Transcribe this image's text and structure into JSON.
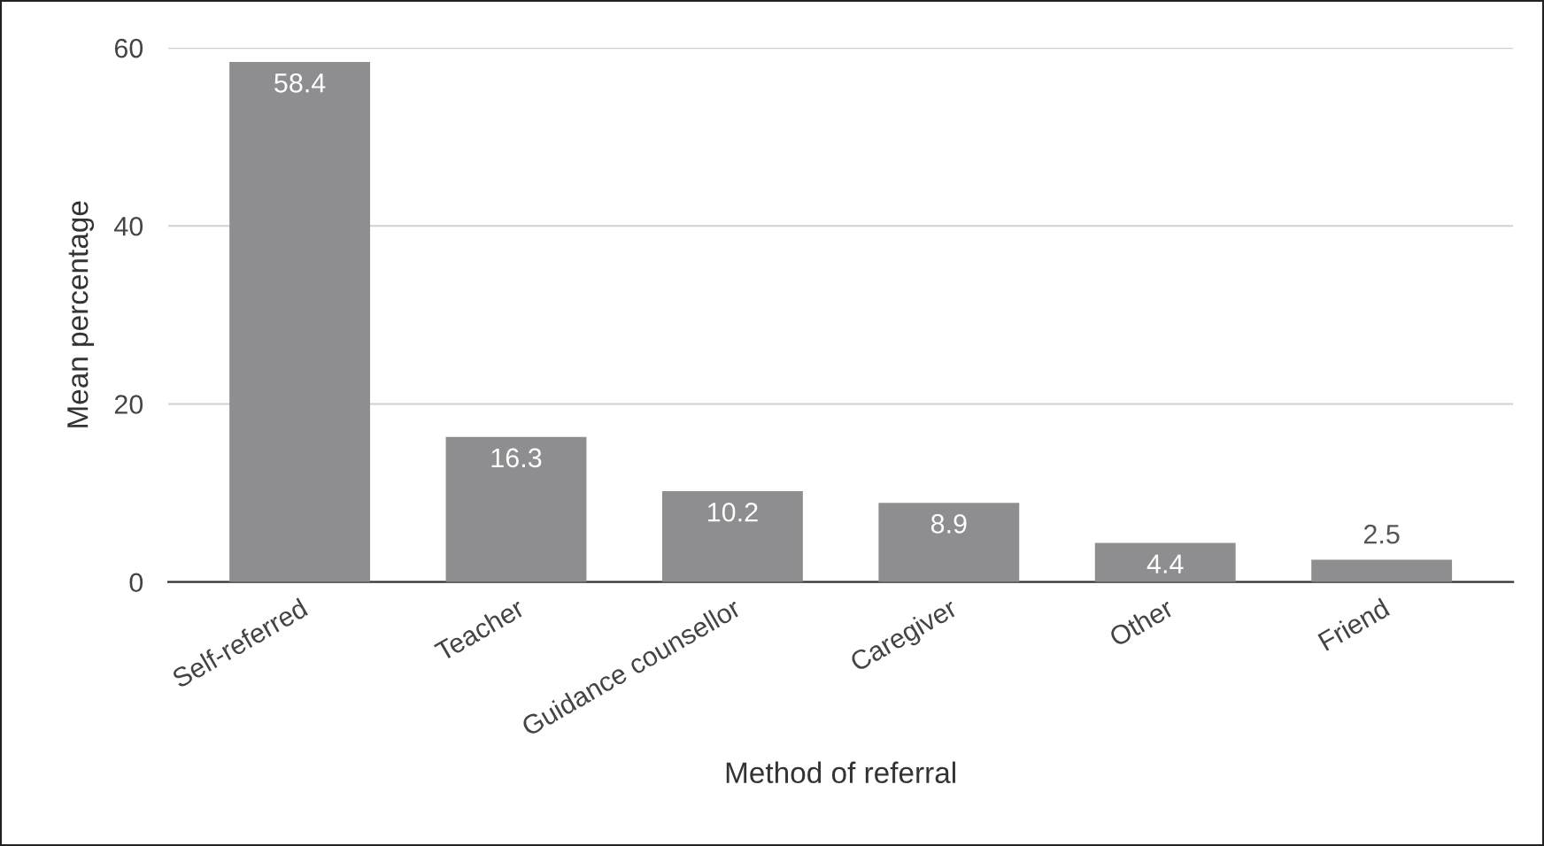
{
  "chart_data": {
    "type": "bar",
    "xlabel": "Method of referral",
    "ylabel": "Mean percentage",
    "categories": [
      "Self-referred",
      "Teacher",
      "Guidance counsellor",
      "Caregiver",
      "Other",
      "Friend"
    ],
    "values": [
      58.4,
      16.3,
      10.2,
      8.9,
      4.4,
      2.5
    ],
    "color": "#8e8e90",
    "ylim": [
      0,
      60
    ],
    "yticks": [
      0,
      20,
      40,
      60
    ],
    "grid": "y",
    "data_labels": true,
    "legend": false
  }
}
